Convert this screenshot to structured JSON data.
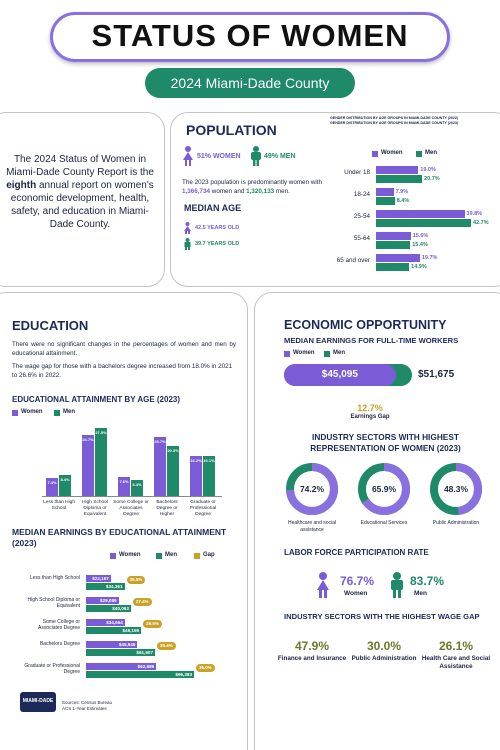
{
  "header": {
    "title": "STATUS OF WOMEN",
    "subtitle": "2024 Miami-Dade County"
  },
  "intro": {
    "text_before": "The 2024 Status of Women in Miami-Dade County Report is the",
    "bold": "eighth",
    "text_after": "annual report on women's economic development, health, safety, and education in Miami-Dade County."
  },
  "population": {
    "title": "POPULATION",
    "women_label": "51% WOMEN",
    "men_label": "49% MEN",
    "text": [
      "The 2023 population is predominantly women with",
      "1,366,734",
      "women and",
      "1,320,133",
      "men."
    ],
    "median_age_title": "MEDIAN AGE",
    "women_age": "42.5 YEARS OLD",
    "men_age": "39.7 YEARS OLD",
    "chart": {
      "type": "bar",
      "titles": [
        "GENDER DISTRIBUTION BY AGE GROUPS IN MIAMI-DADE COUNTY (2022)",
        "GENDER DISTRIBUTION BY AGE GROUPS IN MIAMI-DADE COUNTY (2023)"
      ],
      "categories": [
        "Under 18",
        "18-24",
        "25-54",
        "55-64",
        "65 and over"
      ],
      "series": [
        {
          "name": "Women",
          "color": "#7b5cd6",
          "values": [
            19.0,
            7.9,
            39.8,
            15.6,
            19.7
          ],
          "value_labels": [
            "19.0%",
            "7.9%",
            "39.8%",
            "15.6%",
            "19.7%"
          ]
        },
        {
          "name": "Men",
          "color": "#1e8a6a",
          "values": [
            20.7,
            8.4,
            42.7,
            15.4,
            14.9
          ],
          "value_labels": [
            "20.7%",
            "8.4%",
            "42.7%",
            "15.4%",
            "14.9%"
          ]
        }
      ]
    }
  },
  "education": {
    "title": "EDUCATION",
    "paragraphs": [
      "There were no significant changes in the percentages of women and men by educational attainment.",
      "The wage gap for those with a bachelors degree increased from 18.0% in 2021 to 26.6% in 2022."
    ],
    "attainment": {
      "type": "bar",
      "title": "EDUCATIONAL ATTAINMENT BY AGE (2023)",
      "categories": [
        "Less than High School",
        "High School Diploma or Equivalent",
        "Some College or Associates Degree",
        "Bachelors Degree or Higher",
        "Graduate or Professional Degree"
      ],
      "series": [
        {
          "name": "Women",
          "color": "#7b5cd6",
          "values": [
            7.4,
            24.7,
            7.6,
            23.7,
            16.2
          ],
          "value_labels": [
            "7.4%",
            "24.7%",
            "7.6%",
            "23.7%",
            "16.2%"
          ]
        },
        {
          "name": "Men",
          "color": "#1e8a6a",
          "values": [
            8.4,
            27.5,
            6.4,
            20.3,
            16.1
          ],
          "value_labels": [
            "8.4%",
            "27.5%",
            "6.4%",
            "20.3%",
            "16.1%"
          ]
        }
      ]
    },
    "earnings": {
      "type": "bar",
      "title": "MEDIAN EARNINGS BY EDUCATIONAL ATTAINMENT (2023)",
      "categories": [
        "Less than High School",
        "High School Diploma or Equivalent",
        "Some College or Associates Degree",
        "Bachelors Degree",
        "Graduate or Professional Degree"
      ],
      "series": [
        {
          "name": "Women",
          "color": "#7b5cd6",
          "values": [
            22167,
            29089,
            34664,
            45945,
            62689
          ],
          "value_labels": [
            "$22,167",
            "$29,089",
            "$34,664",
            "$45,945",
            "$62,689"
          ]
        },
        {
          "name": "Men",
          "color": "#1e8a6a",
          "values": [
            34361,
            40063,
            49159,
            61607,
            96383
          ],
          "value_labels": [
            "$34,361",
            "$40,063",
            "$49,159",
            "$61,607",
            "$96,383"
          ]
        }
      ],
      "gap": {
        "name": "Gap",
        "color": "#c9a227",
        "labels": [
          "35.5%",
          "27.4%",
          "29.5%",
          "25.4%",
          "35.0%"
        ]
      }
    },
    "logo": "MIAMI-DADE",
    "source": "Sources: Census Bureau ACS 1-Year Estimates"
  },
  "economic": {
    "title": "ECONOMIC OPPORTUNITY",
    "full_time": {
      "title": "MEDIAN EARNINGS FOR FULL-TIME WORKERS",
      "series": [
        {
          "name": "Women",
          "color": "#7b5cd6",
          "value": 45095,
          "value_label": "$45,095"
        },
        {
          "name": "Men",
          "color": "#1e8a6a",
          "value": 51675,
          "value_label": "$51,675"
        }
      ],
      "gap": "12.7%",
      "gap_label": "Earnings Gap"
    },
    "industries": {
      "title": "INDUSTRY SECTORS WITH HIGHEST REPRESENTATION OF WOMEN (2023)",
      "items": [
        {
          "label": "Healthcare and social assistance",
          "value": 74.2,
          "value_label": "74.2%"
        },
        {
          "label": "Educational Services",
          "value": 65.9,
          "value_label": "65.9%"
        },
        {
          "label": "Public Administration",
          "value": 48.3,
          "value_label": "48.3%"
        }
      ]
    },
    "labor": {
      "title": "LABOR FORCE PARTICIPATION RATE",
      "women_value": "76.7%",
      "women_label": "Women",
      "men_value": "83.7%",
      "men_label": "Men"
    },
    "wage_gap": {
      "title": "INDUSTRY SECTORS WITH THE HIGHEST WAGE GAP",
      "items": [
        {
          "value": "47.9%",
          "label": "Finance and Insurance"
        },
        {
          "value": "30.0%",
          "label": "Public Administration"
        },
        {
          "value": "26.1%",
          "label": "Health Care and Social Assistance"
        }
      ]
    }
  }
}
